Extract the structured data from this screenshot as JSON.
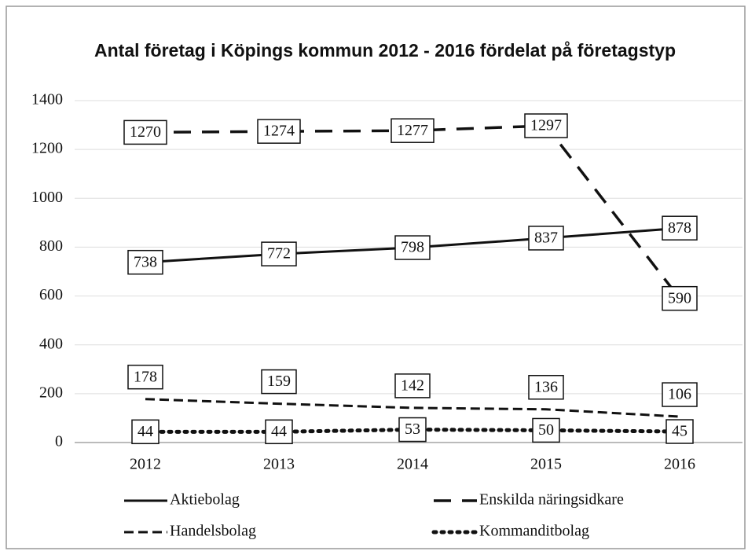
{
  "chart_data": {
    "type": "line",
    "title": "Antal företag i Köpings kommun 2012 - 2016 fördelat på  företagstyp",
    "categories": [
      "2012",
      "2013",
      "2014",
      "2015",
      "2016"
    ],
    "series": [
      {
        "name": "Aktiebolag",
        "color": "#111111",
        "line_style": "solid",
        "values": [
          738,
          772,
          798,
          837,
          878
        ]
      },
      {
        "name": "Enskilda näringsidkare",
        "color": "#111111",
        "line_style": "longdash",
        "values": [
          1270,
          1274,
          1277,
          1297,
          590
        ]
      },
      {
        "name": "Handelsbolag",
        "color": "#111111",
        "line_style": "dash",
        "values": [
          178,
          159,
          142,
          136,
          106
        ]
      },
      {
        "name": "Kommanditbolag",
        "color": "#111111",
        "line_style": "dot",
        "values": [
          44,
          44,
          53,
          50,
          45
        ]
      }
    ],
    "ylim": [
      0,
      1400
    ],
    "yticks": [
      0,
      200,
      400,
      600,
      800,
      1000,
      1200,
      1400
    ],
    "grid": true,
    "legend": "bottom"
  }
}
